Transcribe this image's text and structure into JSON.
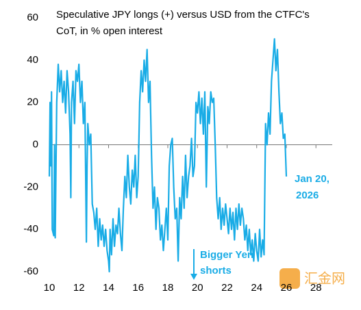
{
  "chart_data": {
    "type": "line",
    "title_lines": [
      "Speculative JPY longs (+) versus USD from the CTFC's",
      "CoT, in % open interest"
    ],
    "annotations": {
      "date": [
        "Jan 20,",
        "2026"
      ],
      "note": [
        "Bigger Yen",
        "shorts"
      ]
    },
    "watermark": "汇金网",
    "xlim": [
      10,
      29.1
    ],
    "ylim": [
      -60,
      60
    ],
    "xticks": [
      10,
      12,
      14,
      16,
      18,
      20,
      22,
      24,
      26,
      28
    ],
    "yticks": [
      -60,
      -40,
      -20,
      0,
      20,
      40,
      60
    ],
    "x": [
      10.0,
      10.05,
      10.1,
      10.15,
      10.2,
      10.3,
      10.35,
      10.4,
      10.5,
      10.6,
      10.7,
      10.8,
      10.9,
      11.0,
      11.1,
      11.2,
      11.3,
      11.4,
      11.45,
      11.5,
      11.6,
      11.7,
      11.8,
      11.9,
      12.0,
      12.1,
      12.2,
      12.3,
      12.4,
      12.5,
      12.55,
      12.6,
      12.7,
      12.8,
      12.9,
      13.0,
      13.1,
      13.2,
      13.3,
      13.4,
      13.5,
      13.6,
      13.7,
      13.8,
      13.9,
      14.0,
      14.05,
      14.1,
      14.2,
      14.3,
      14.4,
      14.5,
      14.6,
      14.7,
      14.8,
      14.9,
      15.0,
      15.1,
      15.2,
      15.3,
      15.4,
      15.5,
      15.6,
      15.7,
      15.8,
      15.9,
      16.0,
      16.1,
      16.2,
      16.3,
      16.4,
      16.5,
      16.6,
      16.7,
      16.8,
      16.9,
      17.0,
      17.1,
      17.2,
      17.3,
      17.4,
      17.5,
      17.6,
      17.7,
      17.8,
      17.9,
      18.0,
      18.1,
      18.2,
      18.3,
      18.4,
      18.5,
      18.6,
      18.7,
      18.8,
      18.9,
      19.0,
      19.1,
      19.2,
      19.3,
      19.4,
      19.5,
      19.6,
      19.7,
      19.8,
      19.9,
      20.0,
      20.1,
      20.2,
      20.3,
      20.4,
      20.5,
      20.6,
      20.7,
      20.8,
      20.9,
      21.0,
      21.1,
      21.2,
      21.3,
      21.4,
      21.5,
      21.6,
      21.7,
      21.8,
      21.9,
      22.0,
      22.1,
      22.2,
      22.3,
      22.4,
      22.5,
      22.6,
      22.7,
      22.8,
      22.9,
      23.0,
      23.1,
      23.2,
      23.3,
      23.4,
      23.5,
      23.6,
      23.7,
      23.8,
      23.9,
      24.0,
      24.1,
      24.2,
      24.3,
      24.4,
      24.5,
      24.6,
      24.7,
      24.8,
      24.9,
      25.0,
      25.1,
      25.2,
      25.3,
      25.4,
      25.5,
      25.6,
      25.7,
      25.8,
      25.9,
      26.0
    ],
    "series": [
      {
        "name": "JPY longs",
        "color": "#19ace6",
        "values": [
          -15,
          20,
          -10,
          25,
          -40,
          -43,
          0,
          -44,
          20,
          38,
          25,
          35,
          20,
          30,
          15,
          35,
          25,
          5,
          -25,
          20,
          30,
          10,
          35,
          30,
          38,
          20,
          30,
          10,
          20,
          -46,
          -10,
          10,
          0,
          5,
          -28,
          -32,
          -40,
          -30,
          -48,
          -35,
          -45,
          -38,
          -48,
          -40,
          -50,
          -55,
          -60,
          -40,
          -52,
          -35,
          -48,
          -38,
          -42,
          -30,
          -42,
          -50,
          -30,
          -15,
          -25,
          -5,
          -20,
          -28,
          -12,
          -20,
          -5,
          -25,
          -15,
          20,
          35,
          25,
          40,
          30,
          45,
          20,
          30,
          -5,
          -30,
          -20,
          -40,
          -25,
          -30,
          -45,
          -38,
          -50,
          -40,
          -30,
          -45,
          -10,
          0,
          3,
          -20,
          -35,
          -30,
          -55,
          -25,
          -35,
          -15,
          -30,
          -5,
          -25,
          -15,
          -10,
          3,
          -15,
          -10,
          20,
          15,
          25,
          10,
          22,
          5,
          25,
          -20,
          18,
          10,
          25,
          20,
          22,
          0,
          -25,
          -35,
          -25,
          -40,
          -30,
          -38,
          -28,
          -35,
          -42,
          -30,
          -40,
          -32,
          -45,
          -30,
          -40,
          -28,
          -38,
          -30,
          -35,
          -45,
          -38,
          -50,
          -40,
          -52,
          -45,
          -55,
          -42,
          -50,
          -55,
          -40,
          -53,
          -45,
          -52,
          10,
          0,
          15,
          5,
          30,
          40,
          50,
          35,
          45,
          25,
          10,
          15,
          3,
          5,
          -15
        ]
      }
    ]
  }
}
